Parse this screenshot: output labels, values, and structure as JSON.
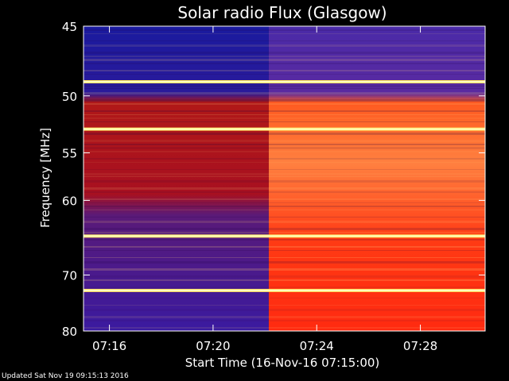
{
  "chart_data": {
    "type": "heatmap",
    "title": "Solar radio Flux (Glasgow)",
    "xlabel": "Start Time (16-Nov-16 07:15:00)",
    "ylabel": "Frequency [MHz]",
    "x_range_minutes": [
      0,
      15.5
    ],
    "x_ticks": [
      {
        "minute": 1,
        "label": "07:16"
      },
      {
        "minute": 5,
        "label": "07:20"
      },
      {
        "minute": 9,
        "label": "07:24"
      },
      {
        "minute": 13,
        "label": "07:28"
      }
    ],
    "y_scale": "reciprocal",
    "y_range_mhz": [
      45,
      80
    ],
    "y_ticks": [
      45,
      50,
      55,
      60,
      70,
      80
    ],
    "transition_minute": 7.15,
    "regions": [
      {
        "name": "before",
        "minutes": [
          0,
          7.15
        ],
        "color_low": "#2a1a9a",
        "color_high": "#b01010"
      },
      {
        "name": "after",
        "minutes": [
          7.15,
          15.5
        ],
        "color_low": "#5a2ab0",
        "color_high": "#ff3a10"
      }
    ],
    "bright_lines_mhz": [
      48.9,
      52.8,
      64.4,
      72.5
    ],
    "colors": {
      "low": "#1a1aa0",
      "mid": "#d01010",
      "high": "#ffff80"
    }
  },
  "footer": "Updated Sat Nov 19 09:15:13 2016"
}
